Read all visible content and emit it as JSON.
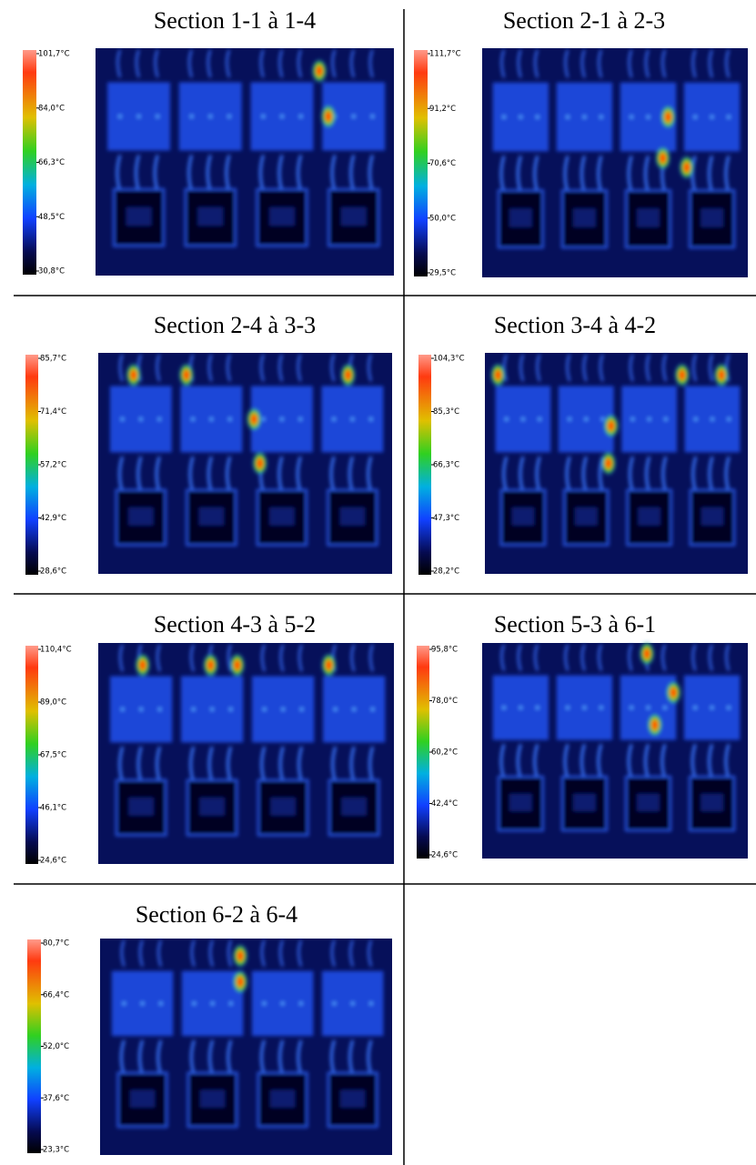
{
  "panels": [
    {
      "title": "Section 1-1 à 1-4",
      "scale": [
        "101,7°C",
        "84,0°C",
        "66,3°C",
        "48,5°C",
        "30,8°C"
      ]
    },
    {
      "title": "Section 2-1 à 2-3",
      "scale": [
        "111,7°C",
        "91,2°C",
        "70,6°C",
        "50,0°C",
        "29,5°C"
      ]
    },
    {
      "title": "Section 2-4 à 3-3",
      "scale": [
        "85,7°C",
        "71,4°C",
        "57,2°C",
        "42,9°C",
        "28,6°C"
      ]
    },
    {
      "title": "Section 3-4 à 4-2",
      "scale": [
        "104,3°C",
        "85,3°C",
        "66,3°C",
        "47,3°C",
        "28,2°C"
      ]
    },
    {
      "title": "Section 4-3 à 5-2",
      "scale": [
        "110,4°C",
        "89,0°C",
        "67,5°C",
        "46,1°C",
        "24,6°C"
      ]
    },
    {
      "title": "Section 5-3 à 6-1",
      "scale": [
        "95,8°C",
        "78,0°C",
        "60,2°C",
        "42,4°C",
        "24,6°C"
      ]
    },
    {
      "title": "Section 6-2 à 6-4",
      "scale": [
        "80,7°C",
        "66,4°C",
        "52,0°C",
        "37,6°C",
        "23,3°C"
      ]
    }
  ]
}
